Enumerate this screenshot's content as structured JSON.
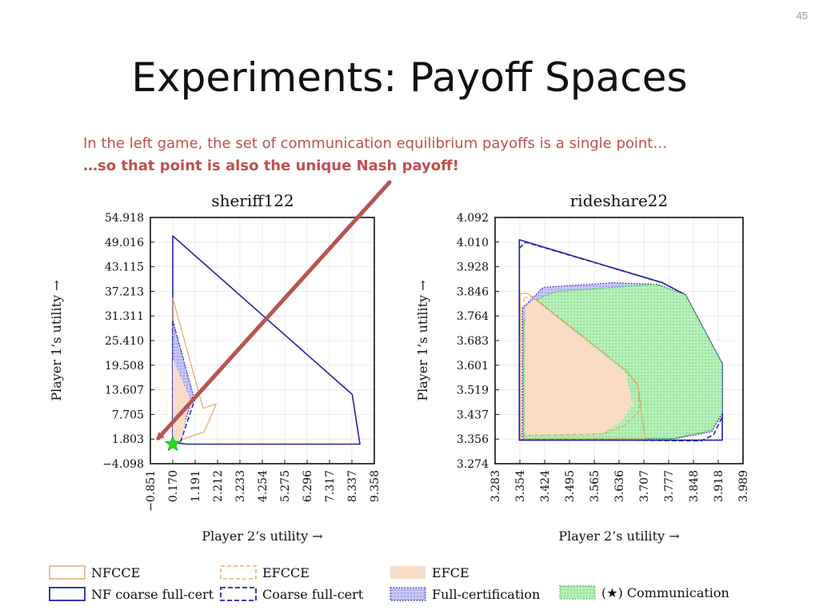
{
  "slide": {
    "number": "45",
    "title": "Experiments: Payoff Spaces",
    "callout_line1": "In the left game, the set of communication equilibrium payoffs is a single point…",
    "callout_line2": "…so that point is also the unique Nash payoff!"
  },
  "colors": {
    "nf_coarse_full_cert": "#2323a8",
    "nfcce": "#e0a060",
    "efce_fill": "#f9dcc8",
    "full_cert_fill": "#c8c8f5",
    "communication_fill": "#b8f0bc",
    "communication_point": "#22dd22",
    "arrow": "#b85450",
    "callout_text": "#c0504d"
  },
  "chart_data": [
    {
      "type": "area",
      "title": "sheriff122",
      "xlabel": "Player 2’s utility →",
      "ylabel": "Player 1’s utility →",
      "xticks": [
        "−0.851",
        "0.170",
        "1.191",
        "2.212",
        "3.233",
        "4.254",
        "5.275",
        "6.296",
        "7.317",
        "8.337",
        "9.358"
      ],
      "yticks": [
        "−4.098",
        "1.803",
        "7.705",
        "13.607",
        "19.508",
        "25.410",
        "31.311",
        "37.213",
        "43.115",
        "49.016",
        "54.918"
      ],
      "xlim": [
        -0.851,
        9.358
      ],
      "ylim": [
        -4.098,
        54.918
      ],
      "grid": true,
      "series": [
        {
          "name": "NF coarse full-cert",
          "style": "solid-outline",
          "points": [
            [
              0.17,
              50.5
            ],
            [
              8.35,
              12.5
            ],
            [
              8.7,
              0.6
            ],
            [
              0.8,
              0.6
            ],
            [
              0.17,
              1.0
            ]
          ]
        },
        {
          "name": "NFCCE",
          "style": "outline",
          "points": [
            [
              0.17,
              35.6
            ],
            [
              1.55,
              9.2
            ],
            [
              2.15,
              10.2
            ],
            [
              1.6,
              3.5
            ],
            [
              0.2,
              1.0
            ]
          ]
        },
        {
          "name": "Coarse full-cert",
          "style": "dashed-outline",
          "points": [
            [
              0.17,
              30.0
            ],
            [
              1.1,
              12.0
            ],
            [
              1.2,
              11.7
            ],
            [
              0.5,
              0.8
            ],
            [
              0.17,
              1.0
            ]
          ]
        },
        {
          "name": "Full-certification",
          "style": "dotted-fill",
          "points": [
            [
              0.17,
              30.0
            ],
            [
              1.1,
              12.5
            ],
            [
              0.55,
              2.5
            ],
            [
              0.17,
              1.0
            ]
          ]
        },
        {
          "name": "EFCE",
          "style": "fill",
          "points": [
            [
              0.17,
              21.0
            ],
            [
              0.95,
              11.5
            ],
            [
              0.6,
              2.4
            ],
            [
              0.17,
              1.0
            ]
          ]
        }
      ],
      "communication_point": [
        0.17,
        0.6
      ]
    },
    {
      "type": "area",
      "title": "rideshare22",
      "xlabel": "Player 2’s utility →",
      "ylabel": "Player 1’s utility →",
      "xticks": [
        "3.283",
        "3.354",
        "3.424",
        "3.495",
        "3.565",
        "3.636",
        "3.707",
        "3.777",
        "3.848",
        "3.918",
        "3.989"
      ],
      "yticks": [
        "3.274",
        "3.356",
        "3.437",
        "3.519",
        "3.601",
        "3.683",
        "3.764",
        "3.846",
        "3.928",
        "4.010",
        "4.092"
      ],
      "xlim": [
        3.283,
        3.989
      ],
      "ylim": [
        3.274,
        4.092
      ],
      "grid": true,
      "series": [
        {
          "name": "NF coarse full-cert",
          "style": "solid-outline",
          "points": [
            [
              3.352,
              4.018
            ],
            [
              3.76,
              3.875
            ],
            [
              3.825,
              3.835
            ],
            [
              3.93,
              3.605
            ],
            [
              3.93,
              3.352
            ],
            [
              3.352,
              3.352
            ]
          ]
        },
        {
          "name": "Coarse full-cert",
          "style": "dashed-outline",
          "points": [
            [
              3.352,
              3.99
            ],
            [
              3.37,
              4.01
            ],
            [
              3.76,
              3.875
            ],
            [
              3.825,
              3.835
            ],
            [
              3.93,
              3.605
            ],
            [
              3.93,
              3.43
            ],
            [
              3.905,
              3.37
            ],
            [
              3.87,
              3.35
            ],
            [
              3.355,
              3.355
            ],
            [
              3.352,
              3.5
            ]
          ]
        },
        {
          "name": "Full-certification",
          "style": "dotted-fill",
          "points": [
            [
              3.36,
              3.79
            ],
            [
              3.42,
              3.86
            ],
            [
              3.62,
              3.875
            ],
            [
              3.745,
              3.87
            ],
            [
              3.825,
              3.835
            ],
            [
              3.93,
              3.605
            ],
            [
              3.93,
              3.44
            ],
            [
              3.9,
              3.38
            ],
            [
              3.79,
              3.356
            ],
            [
              3.36,
              3.356
            ]
          ]
        },
        {
          "name": "Communication",
          "style": "dotted-fill",
          "points": [
            [
              3.365,
              3.74
            ],
            [
              3.4,
              3.82
            ],
            [
              3.455,
              3.845
            ],
            [
              3.74,
              3.87
            ],
            [
              3.825,
              3.835
            ],
            [
              3.93,
              3.605
            ],
            [
              3.93,
              3.445
            ],
            [
              3.9,
              3.385
            ],
            [
              3.79,
              3.358
            ],
            [
              3.365,
              3.358
            ]
          ]
        },
        {
          "name": "NFCCE",
          "style": "outline",
          "points": [
            [
              3.355,
              3.84
            ],
            [
              3.375,
              3.84
            ],
            [
              3.655,
              3.585
            ],
            [
              3.69,
              3.535
            ],
            [
              3.71,
              3.356
            ],
            [
              3.355,
              3.356
            ]
          ]
        },
        {
          "name": "EFCCE",
          "style": "dashed-outline",
          "points": [
            [
              3.365,
              3.825
            ],
            [
              3.39,
              3.83
            ],
            [
              3.66,
              3.58
            ],
            [
              3.69,
              3.53
            ],
            [
              3.695,
              3.45
            ],
            [
              3.65,
              3.4
            ],
            [
              3.59,
              3.373
            ],
            [
              3.365,
              3.368
            ]
          ]
        },
        {
          "name": "EFCE",
          "style": "fill",
          "points": [
            [
              3.37,
              3.795
            ],
            [
              3.395,
              3.82
            ],
            [
              3.655,
              3.575
            ],
            [
              3.675,
              3.47
            ],
            [
              3.64,
              3.41
            ],
            [
              3.585,
              3.375
            ],
            [
              3.37,
              3.37
            ]
          ]
        }
      ]
    }
  ],
  "legend": [
    {
      "label": "NFCCE",
      "style": "nfcce"
    },
    {
      "label": "EFCCE",
      "style": "efcce"
    },
    {
      "label": "EFCE",
      "style": "efce"
    },
    {
      "label": "NF coarse full-cert",
      "style": "nf-coarse"
    },
    {
      "label": "Coarse full-cert",
      "style": "coarse"
    },
    {
      "label": "Full-certification",
      "style": "full-cert"
    },
    {
      "label": "(★) Communication",
      "style": "communication"
    }
  ]
}
